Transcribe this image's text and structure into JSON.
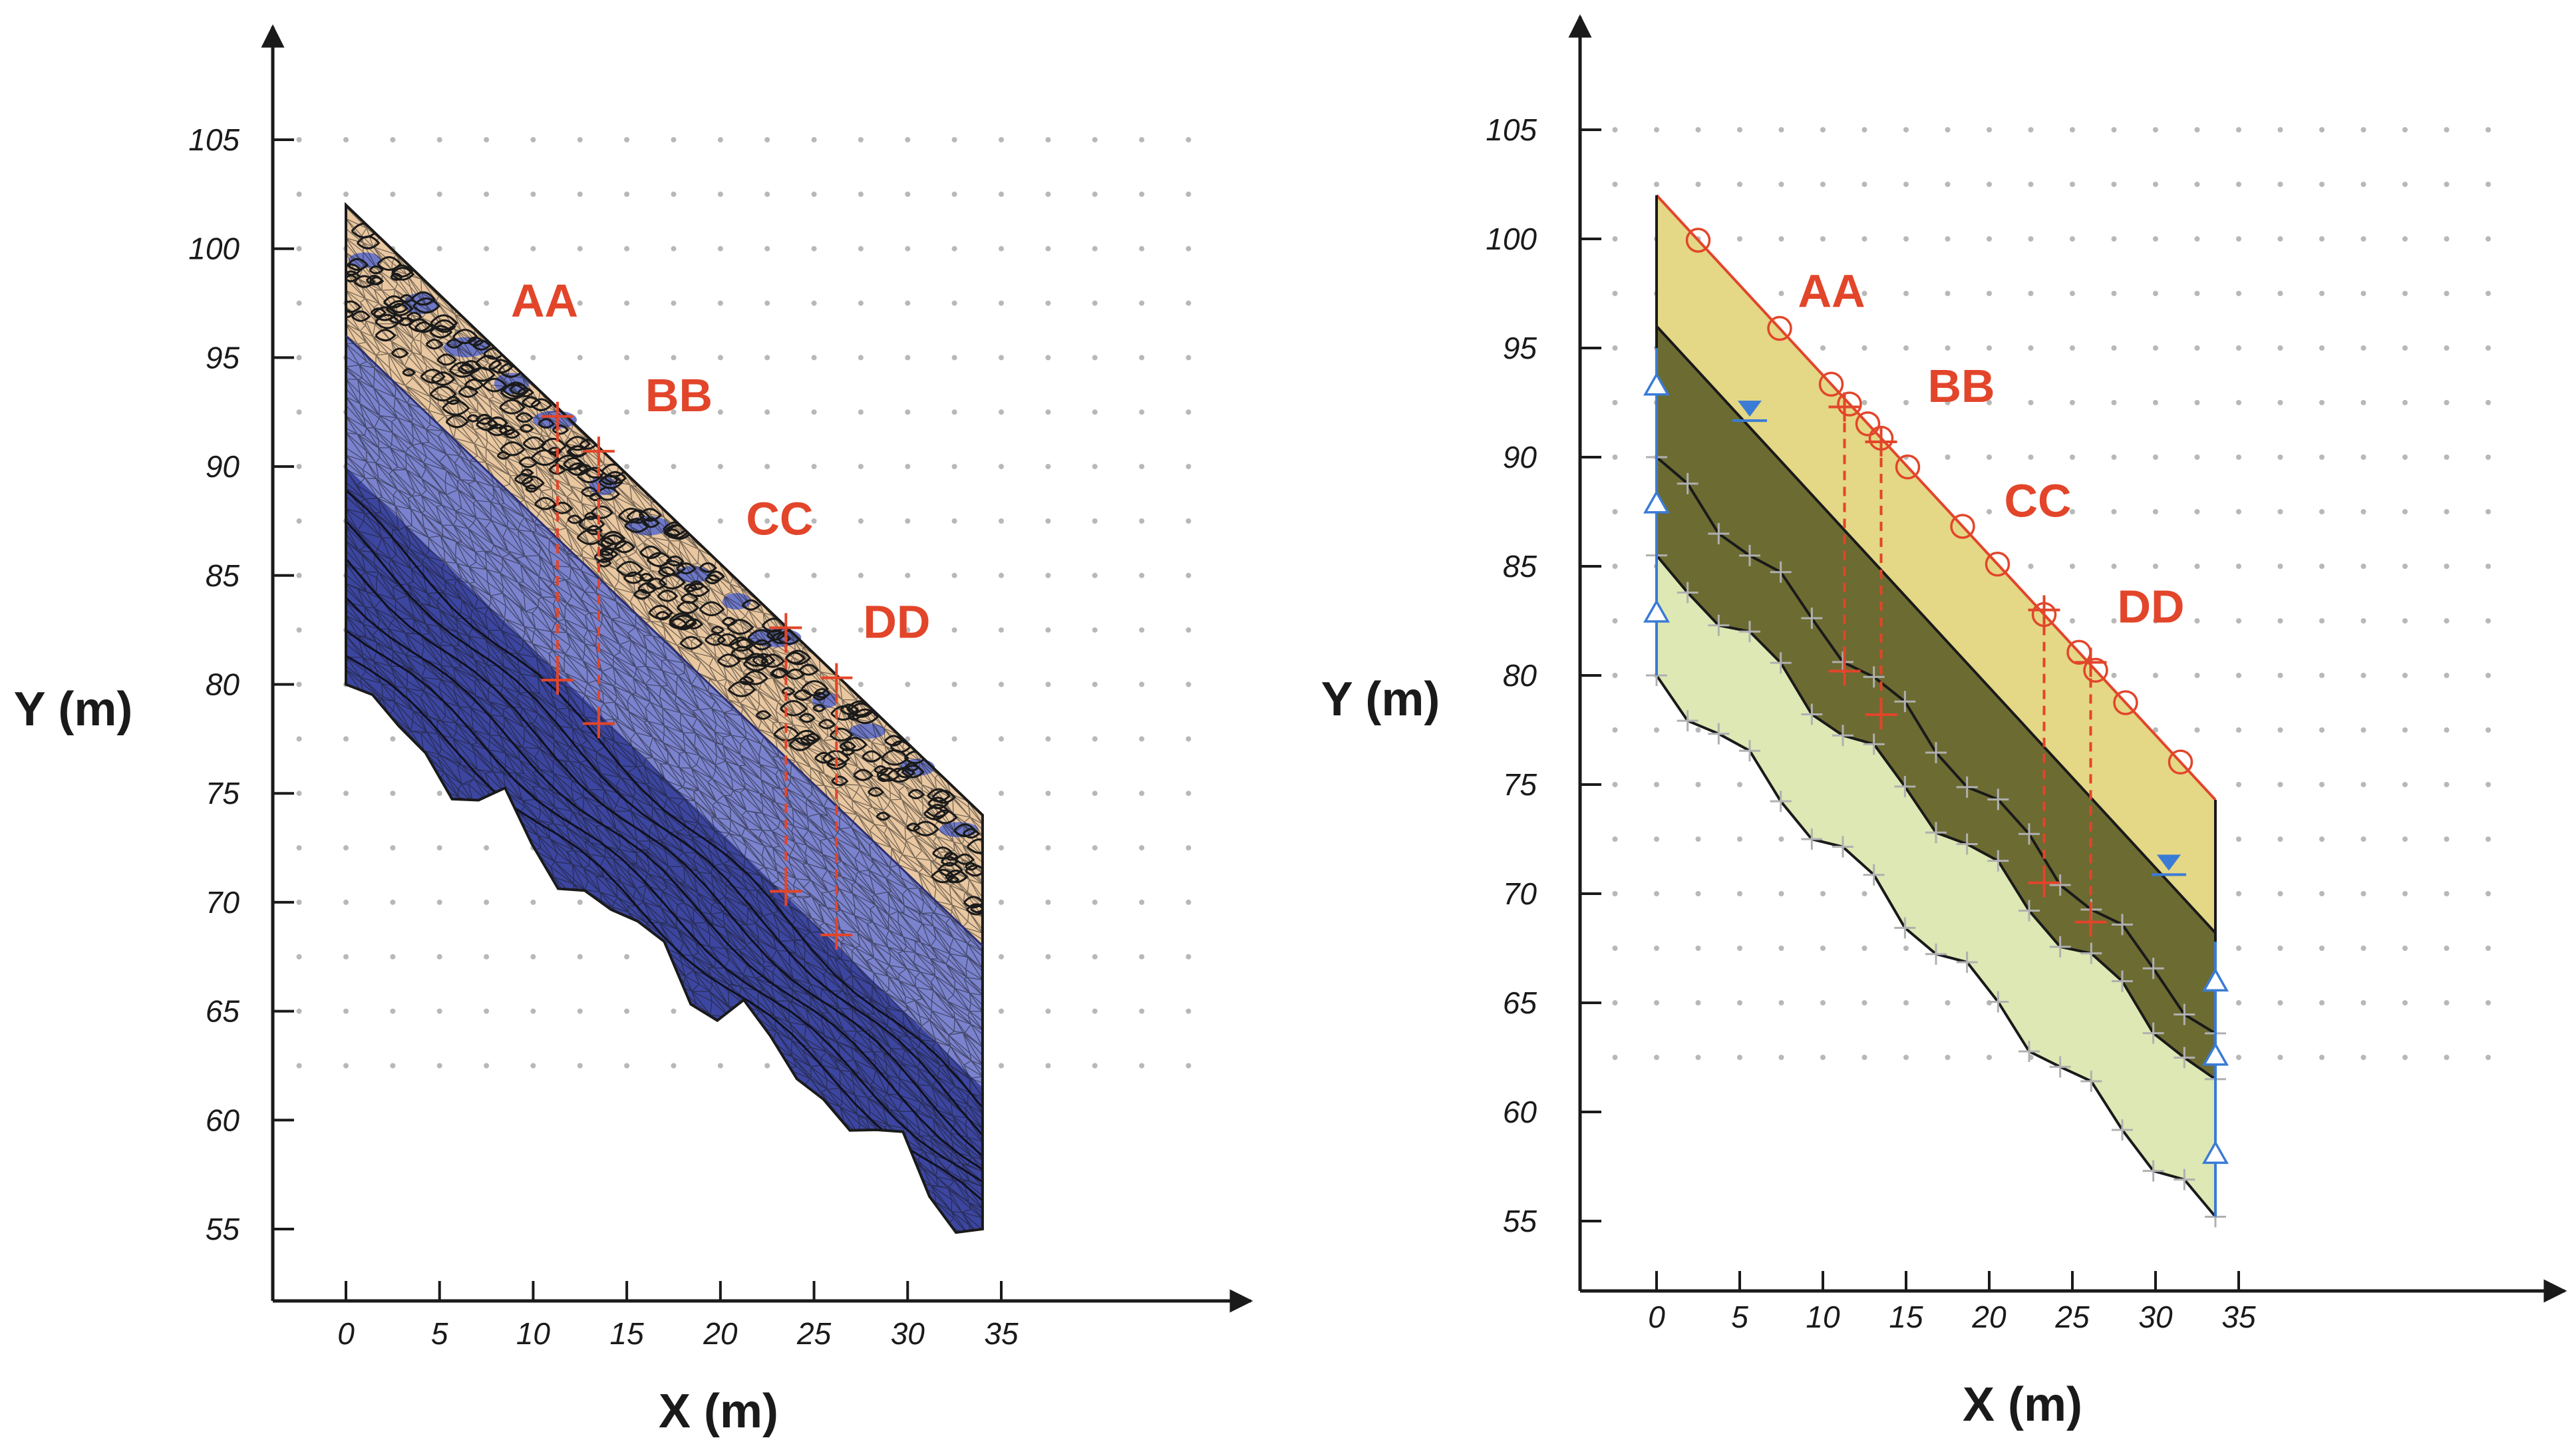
{
  "panels": [
    {
      "id": "mesh",
      "x_axis_label": "X (m)",
      "y_axis_label": "Y (m)",
      "x_ticks": [
        0,
        5,
        10,
        15,
        20,
        25,
        30,
        35
      ],
      "y_ticks": [
        55,
        60,
        65,
        70,
        75,
        80,
        85,
        90,
        95,
        100,
        105
      ],
      "xlim": [
        -3.5,
        41
      ],
      "ylim": [
        50.8,
        109.5
      ],
      "colors": {
        "surface_layer": "#e9c7a0",
        "mid_layer": "#7b83cf",
        "deep_layer": "#3c46a0",
        "section": "#e2452a",
        "mesh_line": "#1a1a1a"
      },
      "boundary": {
        "ground_surface": [
          [
            0,
            102
          ],
          [
            34,
            74
          ]
        ],
        "toe_right_bottom": [
          34,
          55
        ],
        "left_bottom": [
          0,
          80
        ]
      },
      "layer_interfaces": [
        {
          "name": "surface-layer-base",
          "points": [
            [
              0,
              96
            ],
            [
              34,
              68
            ]
          ]
        },
        {
          "name": "deep-layer-top",
          "points": [
            [
              0,
              90
            ],
            [
              34,
              61.5
            ]
          ]
        }
      ],
      "sections": [
        {
          "label": "AA",
          "x": 11.3,
          "top": 92.3,
          "bottom": 80.2
        },
        {
          "label": "BB",
          "x": 13.5,
          "top": 90.7,
          "bottom": 78.2
        },
        {
          "label": "CC",
          "x": 23.5,
          "top": 82.6,
          "bottom": 70.5
        },
        {
          "label": "DD",
          "x": 26.2,
          "top": 80.3,
          "bottom": 68.5
        }
      ]
    },
    {
      "id": "model",
      "x_axis_label": "X (m)",
      "y_axis_label": "Y (m)",
      "x_ticks": [
        0,
        5,
        10,
        15,
        20,
        25,
        30,
        35
      ],
      "y_ticks": [
        55,
        60,
        65,
        70,
        75,
        80,
        85,
        90,
        95,
        100,
        105
      ],
      "xlim": [
        -3.5,
        42
      ],
      "ylim": [
        51.3,
        110.5
      ],
      "colors": {
        "top_layer": "#e4d785",
        "mid_layer": "#6c6b32",
        "bottom_layer": "#dde8b4",
        "section": "#e2452a",
        "boundary_condition": "#3a7bd5"
      },
      "layer_interfaces": [
        {
          "name": "ground-surface",
          "points": [
            [
              0,
              102
            ],
            [
              33.6,
              74.3
            ]
          ]
        },
        {
          "name": "interface-1",
          "points": [
            [
              0,
              96
            ],
            [
              33.6,
              68.2
            ]
          ]
        },
        {
          "name": "interface-2",
          "points": [
            [
              0,
              90
            ],
            [
              33.6,
              63.6
            ]
          ]
        },
        {
          "name": "interface-3",
          "points": [
            [
              0,
              85.5
            ],
            [
              33.6,
              61.5
            ]
          ]
        },
        {
          "name": "bedrock",
          "points": [
            [
              0,
              80
            ],
            [
              33.6,
              55.2
            ]
          ]
        }
      ],
      "surface_markers_x": [
        2.5,
        7.4,
        10.5,
        11.6,
        12.7,
        13.5,
        15.1,
        18.4,
        20.5,
        23.3,
        25.4,
        26.4,
        28.2,
        31.5
      ],
      "water_table_markers": [
        [
          5.6,
          92.1
        ],
        [
          30.8,
          71.3
        ]
      ],
      "fixed_support_markers": [
        [
          0,
          93.3
        ],
        [
          0,
          87.9
        ],
        [
          0,
          82.9
        ],
        [
          33.6,
          66.0
        ],
        [
          33.6,
          62.6
        ],
        [
          33.6,
          58.1
        ]
      ],
      "sections": [
        {
          "label": "AA",
          "x": 11.3,
          "top": 92.3,
          "bottom": 80.2
        },
        {
          "label": "BB",
          "x": 13.5,
          "top": 90.7,
          "bottom": 78.2
        },
        {
          "label": "CC",
          "x": 23.3,
          "top": 83.0,
          "bottom": 70.5
        },
        {
          "label": "DD",
          "x": 26.1,
          "top": 80.6,
          "bottom": 68.7
        }
      ]
    }
  ]
}
